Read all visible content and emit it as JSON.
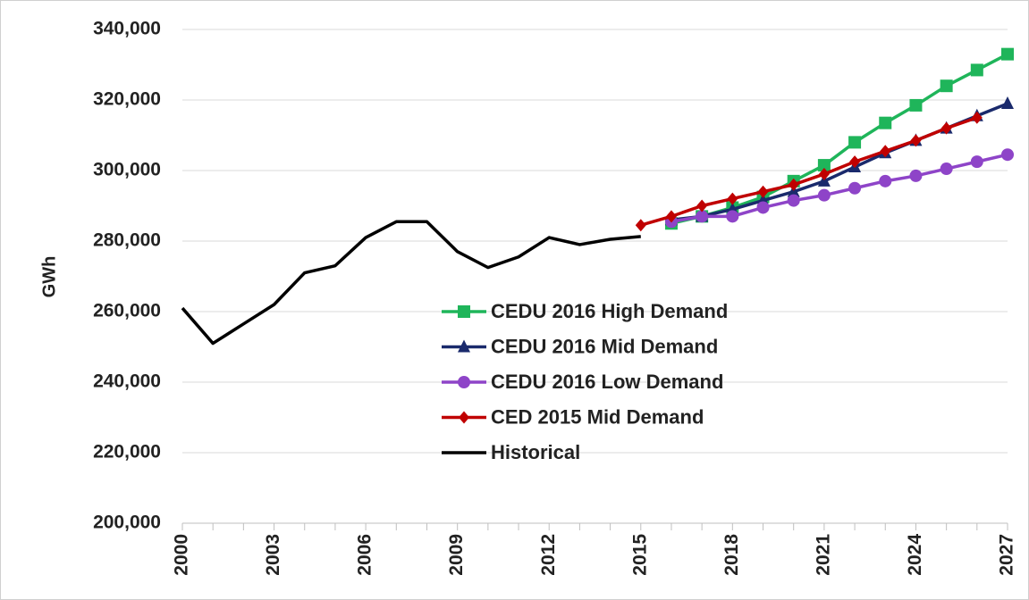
{
  "chart_data": {
    "type": "line",
    "ylabel": "GWh",
    "x": [
      2000,
      2001,
      2002,
      2003,
      2004,
      2005,
      2006,
      2007,
      2008,
      2009,
      2010,
      2011,
      2012,
      2013,
      2014,
      2015,
      2016,
      2017,
      2018,
      2019,
      2020,
      2021,
      2022,
      2023,
      2024,
      2025,
      2026,
      2027
    ],
    "xlim": [
      2000,
      2027
    ],
    "xticks": [
      2000,
      2003,
      2006,
      2009,
      2012,
      2015,
      2018,
      2021,
      2024,
      2027
    ],
    "ylim": [
      200000,
      340000
    ],
    "yticks": [
      {
        "value": 200000,
        "label": "200,000"
      },
      {
        "value": 220000,
        "label": "220,000"
      },
      {
        "value": 240000,
        "label": "240,000"
      },
      {
        "value": 260000,
        "label": "260,000"
      },
      {
        "value": 280000,
        "label": "280,000"
      },
      {
        "value": 300000,
        "label": "300,000"
      },
      {
        "value": 320000,
        "label": "320,000"
      },
      {
        "value": 340000,
        "label": "340,000"
      }
    ],
    "grid": true,
    "legend": "center",
    "series": [
      {
        "name": "CEDU 2016 High Demand",
        "color": "#1fb55a",
        "marker": "square",
        "values": [
          null,
          null,
          null,
          null,
          null,
          null,
          null,
          null,
          null,
          null,
          null,
          null,
          null,
          null,
          null,
          null,
          285000,
          287000,
          289500,
          292500,
          297000,
          301500,
          308000,
          313500,
          318500,
          324000,
          328500,
          333000
        ]
      },
      {
        "name": "CEDU 2016 Mid Demand",
        "color": "#1a2a6c",
        "marker": "triangle",
        "values": [
          null,
          null,
          null,
          null,
          null,
          null,
          null,
          null,
          null,
          null,
          null,
          null,
          null,
          null,
          null,
          null,
          286000,
          287000,
          289000,
          291500,
          294000,
          297000,
          301000,
          305000,
          308500,
          312000,
          315500,
          319000
        ]
      },
      {
        "name": "CEDU 2016 Low Demand",
        "color": "#8e44c8",
        "marker": "circle",
        "values": [
          null,
          null,
          null,
          null,
          null,
          null,
          null,
          null,
          null,
          null,
          null,
          null,
          null,
          null,
          null,
          null,
          285500,
          287000,
          287000,
          289500,
          291500,
          293000,
          295000,
          297000,
          298500,
          300500,
          302500,
          304500
        ]
      },
      {
        "name": "CED 2015 Mid Demand",
        "color": "#c00000",
        "marker": "diamond",
        "values": [
          null,
          null,
          null,
          null,
          null,
          null,
          null,
          null,
          null,
          null,
          null,
          null,
          null,
          null,
          null,
          284500,
          287000,
          290000,
          292000,
          294000,
          296000,
          299000,
          302500,
          305500,
          308500,
          312000,
          315000,
          null
        ]
      },
      {
        "name": "Historical",
        "color": "#000000",
        "marker": "none",
        "values": [
          261000,
          251000,
          256500,
          262000,
          271000,
          273000,
          281000,
          285500,
          285500,
          277000,
          272500,
          275500,
          281000,
          279000,
          280500,
          281300,
          null,
          null,
          null,
          null,
          null,
          null,
          null,
          null,
          null,
          null,
          null,
          null
        ]
      }
    ]
  }
}
